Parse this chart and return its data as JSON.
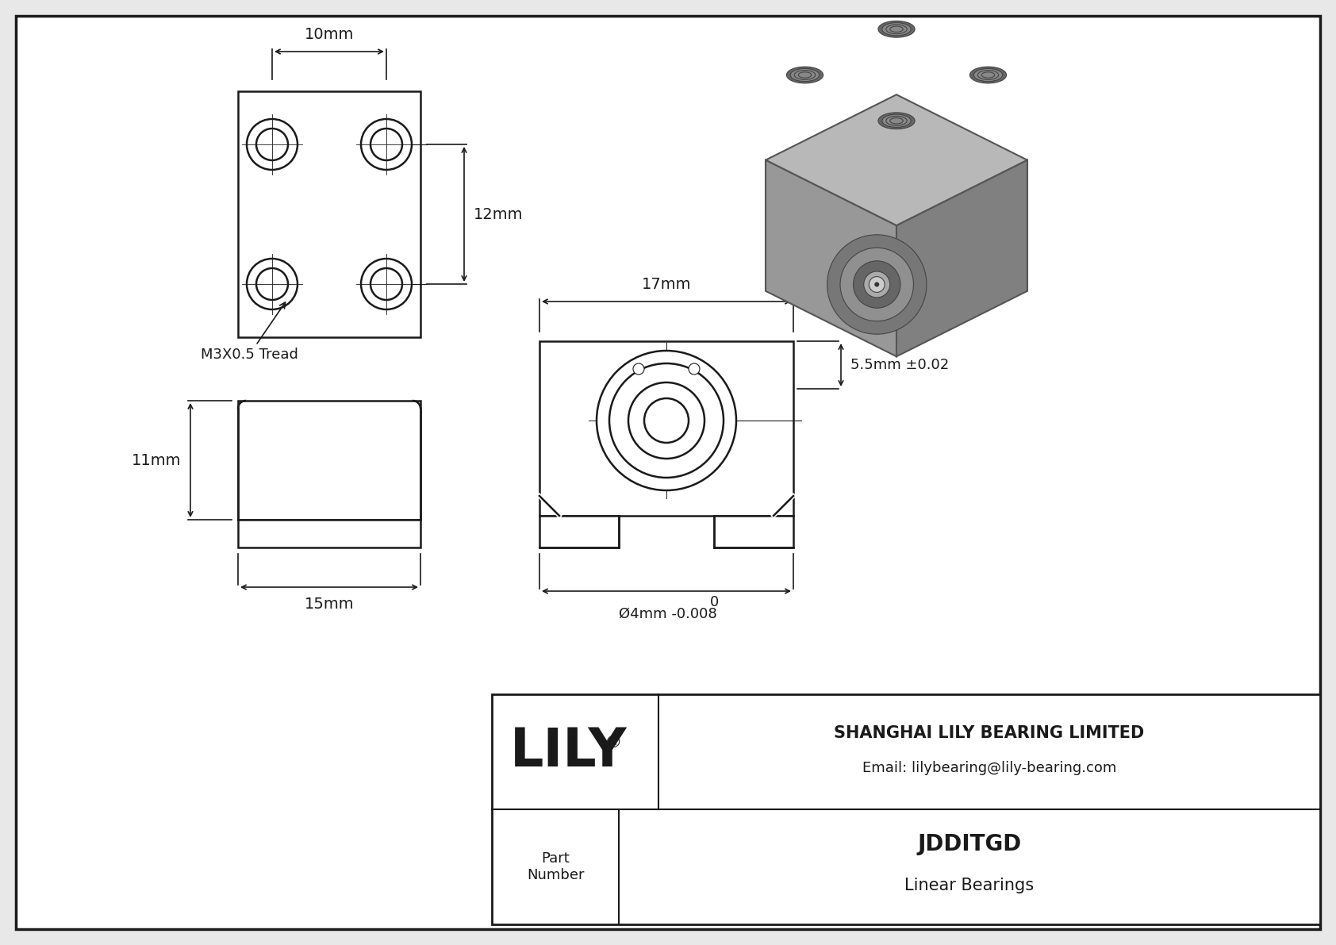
{
  "bg_color": "#e8e8e8",
  "drawing_bg": "#ffffff",
  "line_color": "#1a1a1a",
  "title": "JDDITGD",
  "subtitle": "Linear Bearings",
  "company": "SHANGHAI LILY BEARING LIMITED",
  "email": "Email: lilybearing@lily-bearing.com",
  "part_label": "Part\nNumber",
  "logo_text": "LILY",
  "dim_10mm": "10mm",
  "dim_12mm": "12mm",
  "dim_11mm": "11mm",
  "dim_15mm": "15mm",
  "dim_17mm": "17mm",
  "dim_55mm": "5.5mm ±0.02",
  "dim_4mm": "Ø4mm -0.008",
  "dim_4mm_top": "0",
  "thread_label": "M3X0.5 Tread",
  "iso_top_color": "#aaaaaa",
  "iso_front_color": "#999999",
  "iso_right_color": "#888888",
  "iso_hole_color": "#666666",
  "iso_bore_color1": "#777777",
  "iso_bore_color2": "#555555"
}
